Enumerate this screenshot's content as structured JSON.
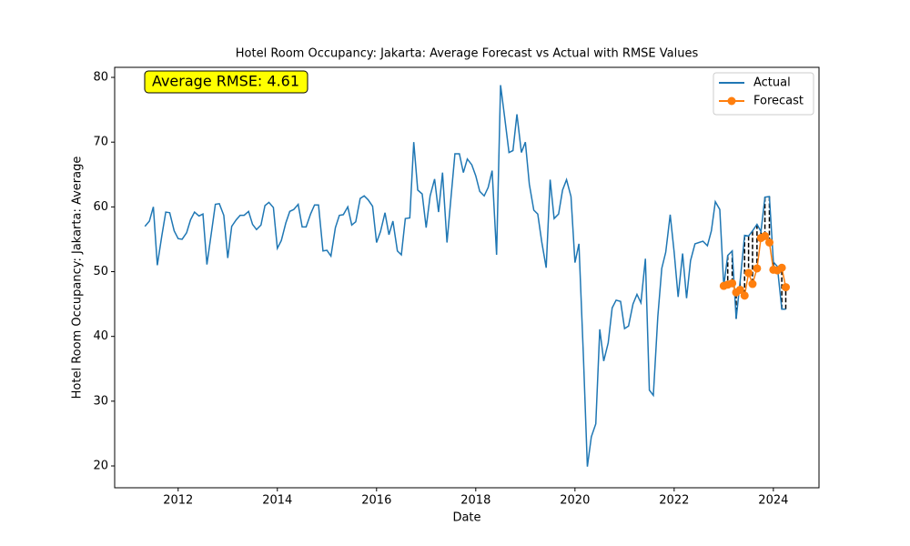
{
  "chart_data": {
    "type": "line",
    "title": "Hotel Room Occupancy: Jakarta: Average Forecast vs Actual with RMSE Values",
    "x_label": "Date",
    "y_label": "Hotel Room Occupancy: Jakarta: Average",
    "annotation": "Average RMSE: 4.61",
    "xlim": [
      2010.72,
      2024.92
    ],
    "xticks": [
      2012,
      2014,
      2016,
      2018,
      2020,
      2022,
      2024
    ],
    "ylim": [
      16.63,
      81.55
    ],
    "yticks": [
      20,
      30,
      40,
      50,
      60,
      70,
      80
    ],
    "legend": "upper right",
    "series": [
      {
        "name": "Actual",
        "color": "#1f77b4",
        "marker": false,
        "x": [
          2011.33,
          2011.42,
          2011.5,
          2011.58,
          2011.67,
          2011.75,
          2011.83,
          2011.92,
          2012,
          2012.08,
          2012.17,
          2012.25,
          2012.33,
          2012.42,
          2012.5,
          2012.58,
          2012.67,
          2012.75,
          2012.83,
          2012.92,
          2013,
          2013.08,
          2013.17,
          2013.25,
          2013.33,
          2013.42,
          2013.5,
          2013.58,
          2013.67,
          2013.75,
          2013.83,
          2013.92,
          2014,
          2014.08,
          2014.17,
          2014.25,
          2014.33,
          2014.42,
          2014.5,
          2014.58,
          2014.67,
          2014.75,
          2014.83,
          2014.92,
          2015,
          2015.08,
          2015.17,
          2015.25,
          2015.33,
          2015.42,
          2015.5,
          2015.58,
          2015.67,
          2015.75,
          2015.83,
          2015.92,
          2016,
          2016.08,
          2016.17,
          2016.25,
          2016.33,
          2016.42,
          2016.5,
          2016.58,
          2016.67,
          2016.75,
          2016.83,
          2016.92,
          2017,
          2017.08,
          2017.17,
          2017.25,
          2017.33,
          2017.42,
          2017.5,
          2017.58,
          2017.67,
          2017.75,
          2017.83,
          2017.92,
          2018,
          2018.08,
          2018.17,
          2018.25,
          2018.33,
          2018.42,
          2018.5,
          2018.58,
          2018.67,
          2018.75,
          2018.83,
          2018.92,
          2019,
          2019.08,
          2019.17,
          2019.25,
          2019.33,
          2019.42,
          2019.5,
          2019.58,
          2019.67,
          2019.75,
          2019.83,
          2019.92,
          2020,
          2020.08,
          2020.17,
          2020.25,
          2020.33,
          2020.42,
          2020.5,
          2020.58,
          2020.67,
          2020.75,
          2020.83,
          2020.92,
          2021,
          2021.08,
          2021.17,
          2021.25,
          2021.33,
          2021.42,
          2021.5,
          2021.58,
          2021.67,
          2021.75,
          2021.83,
          2021.92,
          2022,
          2022.08,
          2022.17,
          2022.25,
          2022.33,
          2022.42,
          2022.5,
          2022.58,
          2022.67,
          2022.75,
          2022.83,
          2022.92,
          2023,
          2023.08,
          2023.17,
          2023.25,
          2023.33,
          2023.42,
          2023.5,
          2023.58,
          2023.67,
          2023.75,
          2023.83,
          2023.92,
          2024,
          2024.08,
          2024.17,
          2024.25
        ],
        "values": [
          57.0,
          57.8,
          60.0,
          51.0,
          55.5,
          59.2,
          59.1,
          56.3,
          55.1,
          55.0,
          56.0,
          58.0,
          59.2,
          58.6,
          58.9,
          51.1,
          56.0,
          60.4,
          60.5,
          58.7,
          52.1,
          57.0,
          58.0,
          58.7,
          58.7,
          59.3,
          57.3,
          56.5,
          57.2,
          60.2,
          60.7,
          59.9,
          53.6,
          54.8,
          57.5,
          59.3,
          59.6,
          60.4,
          56.9,
          56.9,
          58.9,
          60.3,
          60.3,
          53.2,
          53.3,
          52.4,
          56.8,
          58.7,
          58.8,
          60.0,
          57.2,
          57.7,
          61.3,
          61.7,
          61.1,
          60.1,
          54.5,
          56.2,
          59.1,
          55.7,
          57.8,
          53.2,
          52.6,
          58.2,
          58.3,
          70.0,
          62.6,
          62.0,
          56.8,
          61.7,
          64.3,
          59.2,
          65.3,
          54.5,
          61.4,
          68.2,
          68.2,
          65.3,
          67.4,
          66.5,
          64.8,
          62.4,
          61.7,
          63.0,
          65.6,
          52.6,
          78.8,
          74.0,
          68.4,
          68.7,
          74.3,
          68.4,
          70.0,
          63.5,
          59.5,
          58.9,
          54.6,
          50.6,
          64.2,
          58.2,
          58.9,
          62.6,
          64.2,
          61.6,
          51.4,
          54.3,
          37.0,
          19.9,
          24.5,
          26.5,
          41.1,
          36.2,
          39.0,
          44.4,
          45.6,
          45.4,
          41.2,
          41.6,
          45.0,
          46.5,
          45.2,
          52.0,
          31.7,
          30.9,
          43.0,
          50.5,
          53.0,
          58.8,
          53.0,
          46.1,
          52.8,
          45.9,
          51.7,
          54.3,
          54.5,
          54.7,
          54.0,
          56.3,
          60.8,
          59.6,
          47.8,
          52.5,
          53.2,
          42.7,
          48.5,
          55.6,
          55.5,
          56.3,
          57.3,
          56.2,
          61.5,
          61.6,
          51.5,
          50.8,
          44.2,
          44.2
        ]
      },
      {
        "name": "Forecast",
        "color": "#ff7f0e",
        "marker": true,
        "x": [
          2023,
          2023.08,
          2023.17,
          2023.25,
          2023.33,
          2023.42,
          2023.5,
          2023.58,
          2023.67,
          2023.75,
          2023.83,
          2023.92,
          2024,
          2024.08,
          2024.17,
          2024.25
        ],
        "values": [
          47.8,
          48.0,
          48.2,
          46.8,
          47.2,
          46.3,
          49.8,
          48.1,
          50.5,
          55.2,
          55.5,
          54.5,
          50.3,
          50.2,
          50.6,
          47.6
        ]
      }
    ]
  }
}
